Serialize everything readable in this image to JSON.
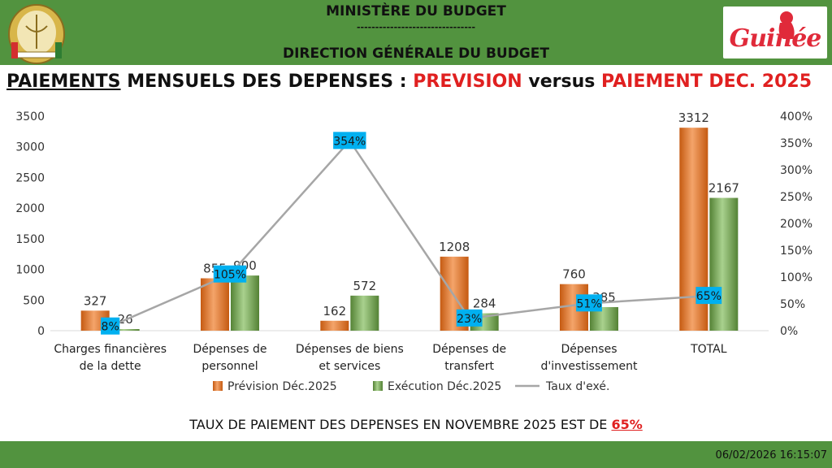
{
  "header": {
    "ministry": "MINISTÈRE DU BUDGET",
    "separator": "--------------------------------",
    "direction": "DIRECTION GÉNÉRALE DU BUDGET",
    "logo_text": "Guinée"
  },
  "title": {
    "part1": "PAIEMENTS",
    "part2": " MENSUELS DES DEPENSES : ",
    "part3": "PREVISION",
    "part4": " versus ",
    "part5": "PAIEMENT DEC. 2025"
  },
  "bottom_note": {
    "text": "TAUX DE PAIEMENT DES DEPENSES EN NOVEMBRE 2025 EST DE ",
    "percent": "65%"
  },
  "footer": {
    "timestamp": "06/02/2026 16:15:07"
  },
  "colors": {
    "prevision": "#ed7d31",
    "execution": "#70ad47",
    "taux": "#a6a6a6",
    "label_box": "#00b0f0",
    "band": "#52933f"
  },
  "chart_data": {
    "type": "bar",
    "categories": [
      [
        "Charges financières",
        "de la dette"
      ],
      [
        "Dépenses de",
        "personnel"
      ],
      [
        "Dépenses de biens",
        "et services"
      ],
      [
        "Dépenses de",
        "transfert"
      ],
      [
        "Dépenses",
        "d'investissement"
      ],
      [
        "TOTAL"
      ]
    ],
    "series": [
      {
        "name": "Prévision Déc.2025",
        "values": [
          327,
          855,
          162,
          1208,
          760,
          3312
        ]
      },
      {
        "name": "Exécution Déc.2025",
        "values": [
          26,
          900,
          572,
          284,
          385,
          2167
        ]
      }
    ],
    "line_series": {
      "name": "Taux d'exé.",
      "values": [
        8,
        105,
        354,
        23,
        51,
        65
      ],
      "axis": "right"
    },
    "ylim": [
      0,
      3500
    ],
    "y_ticks": [
      0,
      500,
      1000,
      1500,
      2000,
      2500,
      3000,
      3500
    ],
    "y2lim": [
      0,
      400
    ],
    "y2_ticks": [
      "0%",
      "50%",
      "100%",
      "150%",
      "200%",
      "250%",
      "300%",
      "350%",
      "400%"
    ],
    "legend": [
      "Prévision Déc.2025",
      "Exécution Déc.2025",
      "Taux d'exé."
    ],
    "legend_position": "bottom"
  }
}
